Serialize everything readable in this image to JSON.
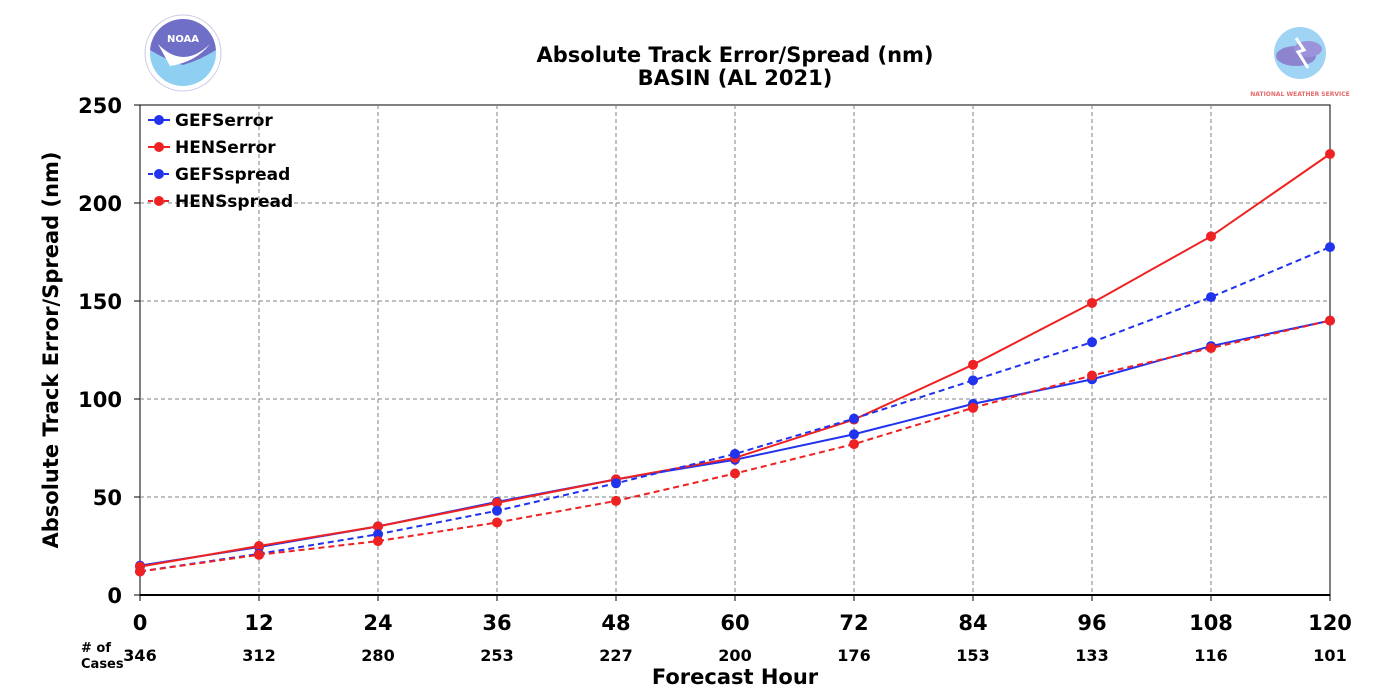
{
  "logos": {
    "left_text": "NOAA",
    "right_text": "NATIONAL WEATHER SERVICE"
  },
  "chart_data": {
    "type": "line",
    "title": "Absolute Track Error/Spread (nm)",
    "subtitle": "BASIN (AL 2021)",
    "xlabel": "Forecast Hour",
    "ylabel": "Absolute Track Error/Spread (nm)",
    "x": [
      0,
      12,
      24,
      36,
      48,
      60,
      72,
      84,
      96,
      108,
      120
    ],
    "xlim": [
      0,
      120
    ],
    "ylim": [
      0,
      250
    ],
    "yticks": [
      0,
      50,
      100,
      150,
      200,
      250
    ],
    "grid": true,
    "legend_position": "top-left",
    "cases_header": [
      "# of",
      "Cases"
    ],
    "cases": [
      346,
      312,
      280,
      253,
      227,
      200,
      176,
      153,
      133,
      116,
      101
    ],
    "series": [
      {
        "name": "GEFSerror",
        "color": "#2233ee",
        "style": "solid",
        "values": [
          15,
          24.5,
          35,
          47.5,
          59,
          69,
          82,
          97.5,
          110,
          127,
          140
        ]
      },
      {
        "name": "HENSerror",
        "color": "#ee2222",
        "style": "solid",
        "values": [
          14.5,
          25,
          35,
          47,
          59,
          70,
          89.5,
          117.5,
          149,
          183,
          225
        ]
      },
      {
        "name": "GEFSspread",
        "color": "#2233ee",
        "style": "dashed",
        "values": [
          12,
          21,
          31,
          43,
          57,
          72,
          90,
          109.5,
          129,
          152,
          177.5
        ]
      },
      {
        "name": "HENSspread",
        "color": "#ee2222",
        "style": "dashed",
        "values": [
          12,
          20.5,
          27.5,
          37,
          48,
          62,
          77,
          95.5,
          112,
          126,
          140
        ]
      }
    ]
  }
}
